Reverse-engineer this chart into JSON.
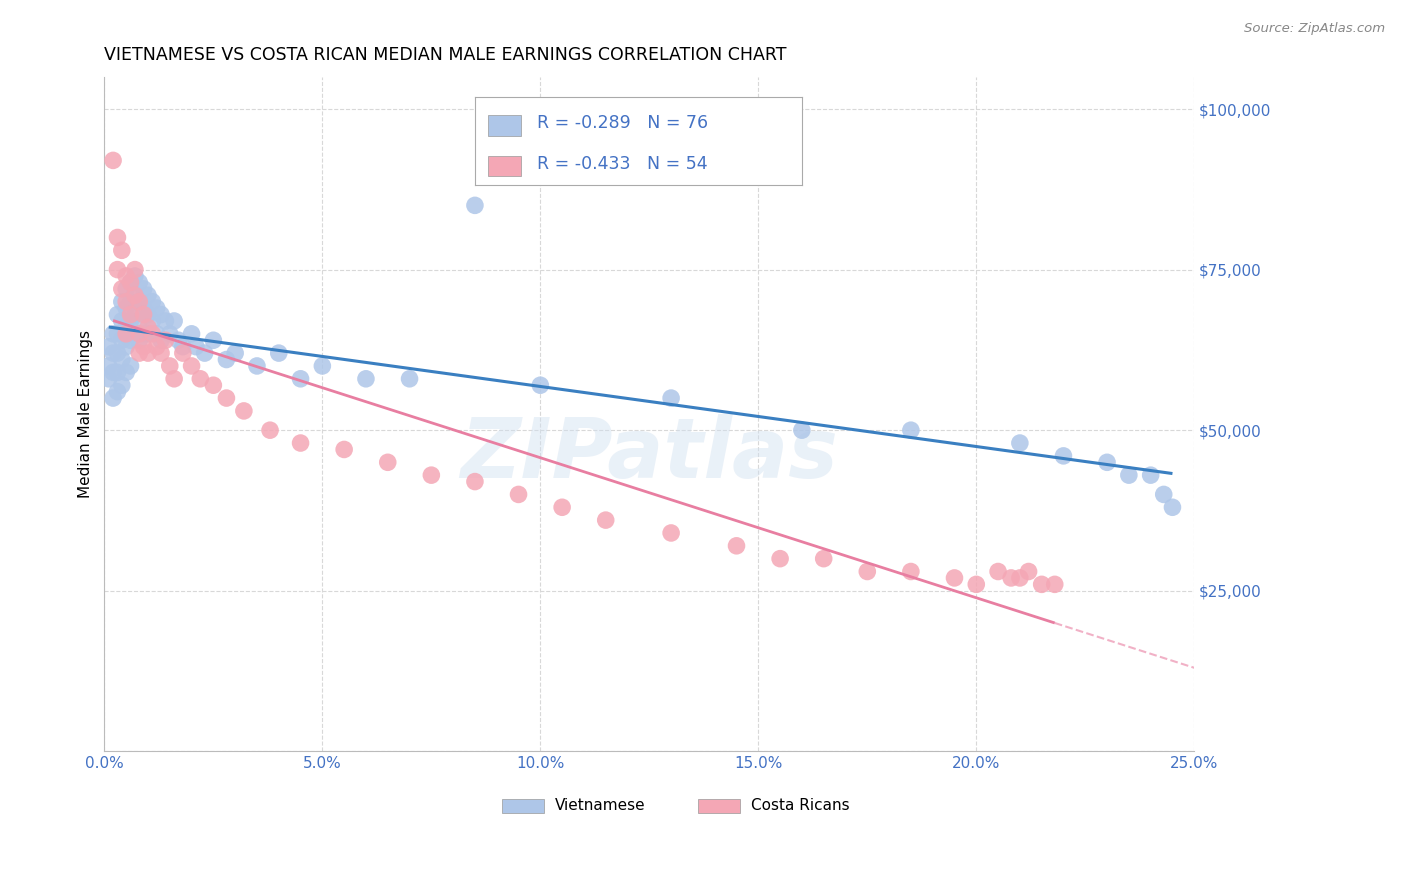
{
  "title": "VIETNAMESE VS COSTA RICAN MEDIAN MALE EARNINGS CORRELATION CHART",
  "source": "Source: ZipAtlas.com",
  "ylabel": "Median Male Earnings",
  "xlim": [
    0.0,
    0.25
  ],
  "ylim": [
    0,
    105000
  ],
  "viet_R": "-0.289",
  "viet_N": "76",
  "costa_R": "-0.433",
  "costa_N": "54",
  "viet_color": "#aec6e8",
  "costa_color": "#f4a7b5",
  "viet_line_color": "#3a7fc1",
  "costa_line_color": "#e87ea1",
  "watermark": "ZIPatlas",
  "background_color": "#ffffff",
  "grid_color": "#d8d8d8",
  "axis_label_color": "#4472c4",
  "legend_label_color": "#333333",
  "viet_scatter_x": [
    0.001,
    0.001,
    0.001,
    0.002,
    0.002,
    0.002,
    0.002,
    0.003,
    0.003,
    0.003,
    0.003,
    0.003,
    0.004,
    0.004,
    0.004,
    0.004,
    0.004,
    0.005,
    0.005,
    0.005,
    0.005,
    0.005,
    0.006,
    0.006,
    0.006,
    0.006,
    0.006,
    0.007,
    0.007,
    0.007,
    0.007,
    0.008,
    0.008,
    0.008,
    0.008,
    0.009,
    0.009,
    0.009,
    0.01,
    0.01,
    0.01,
    0.011,
    0.011,
    0.012,
    0.012,
    0.013,
    0.013,
    0.014,
    0.015,
    0.016,
    0.017,
    0.018,
    0.02,
    0.021,
    0.023,
    0.025,
    0.028,
    0.03,
    0.035,
    0.04,
    0.045,
    0.05,
    0.06,
    0.07,
    0.085,
    0.1,
    0.13,
    0.16,
    0.185,
    0.21,
    0.22,
    0.23,
    0.235,
    0.24,
    0.243,
    0.245
  ],
  "viet_scatter_y": [
    63000,
    60000,
    58000,
    65000,
    62000,
    59000,
    55000,
    68000,
    65000,
    62000,
    59000,
    56000,
    70000,
    67000,
    64000,
    61000,
    57000,
    72000,
    69000,
    66000,
    63000,
    59000,
    73000,
    70000,
    67000,
    64000,
    60000,
    74000,
    71000,
    68000,
    65000,
    73000,
    70000,
    67000,
    64000,
    72000,
    69000,
    65000,
    71000,
    68000,
    65000,
    70000,
    67000,
    69000,
    65000,
    68000,
    64000,
    67000,
    65000,
    67000,
    64000,
    63000,
    65000,
    63000,
    62000,
    64000,
    61000,
    62000,
    60000,
    62000,
    58000,
    60000,
    58000,
    58000,
    85000,
    57000,
    55000,
    50000,
    50000,
    48000,
    46000,
    45000,
    43000,
    43000,
    40000,
    38000
  ],
  "costa_scatter_x": [
    0.002,
    0.003,
    0.003,
    0.004,
    0.004,
    0.005,
    0.005,
    0.005,
    0.006,
    0.006,
    0.007,
    0.007,
    0.008,
    0.008,
    0.008,
    0.009,
    0.009,
    0.01,
    0.01,
    0.011,
    0.012,
    0.013,
    0.014,
    0.015,
    0.016,
    0.018,
    0.02,
    0.022,
    0.025,
    0.028,
    0.032,
    0.038,
    0.045,
    0.055,
    0.065,
    0.075,
    0.085,
    0.095,
    0.105,
    0.115,
    0.13,
    0.145,
    0.155,
    0.165,
    0.175,
    0.185,
    0.195,
    0.2,
    0.205,
    0.208,
    0.21,
    0.212,
    0.215,
    0.218
  ],
  "costa_scatter_y": [
    92000,
    80000,
    75000,
    78000,
    72000,
    74000,
    70000,
    65000,
    73000,
    68000,
    71000,
    75000,
    70000,
    65000,
    62000,
    68000,
    63000,
    66000,
    62000,
    65000,
    63000,
    62000,
    64000,
    60000,
    58000,
    62000,
    60000,
    58000,
    57000,
    55000,
    53000,
    50000,
    48000,
    47000,
    45000,
    43000,
    42000,
    40000,
    38000,
    36000,
    34000,
    32000,
    30000,
    30000,
    28000,
    28000,
    27000,
    26000,
    28000,
    27000,
    27000,
    28000,
    26000,
    26000
  ]
}
